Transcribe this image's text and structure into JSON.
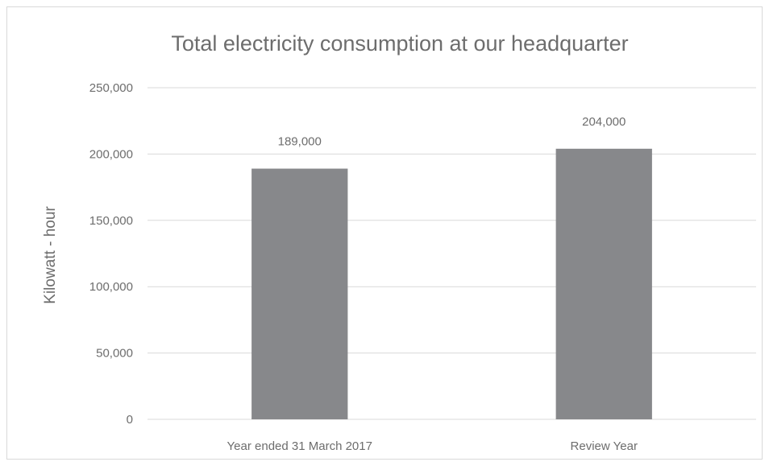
{
  "chart_data": {
    "type": "bar",
    "title": "Total electricity consumption at our headquarter",
    "xlabel": "",
    "ylabel": "Kilowatt - hour",
    "categories": [
      "Year ended 31 March 2017",
      "Review Year"
    ],
    "values": [
      189000,
      204000
    ],
    "data_labels": [
      "189,000",
      "204,000"
    ],
    "ylim": [
      0,
      250000
    ],
    "yticks": [
      0,
      50000,
      100000,
      150000,
      200000,
      250000
    ],
    "ytick_labels": [
      "0",
      "50,000",
      "100,000",
      "150,000",
      "200,000",
      "250,000"
    ],
    "grid": true,
    "legend": "none",
    "bar_color": "#87888b"
  }
}
